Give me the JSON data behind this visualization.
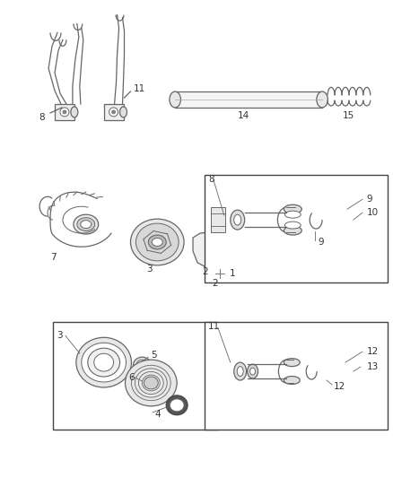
{
  "bg_color": "#ffffff",
  "line_color": "#666666",
  "dark_color": "#444444",
  "label_color": "#333333",
  "label_fontsize": 7.5,
  "fig_width": 4.38,
  "fig_height": 5.33,
  "dpi": 100
}
